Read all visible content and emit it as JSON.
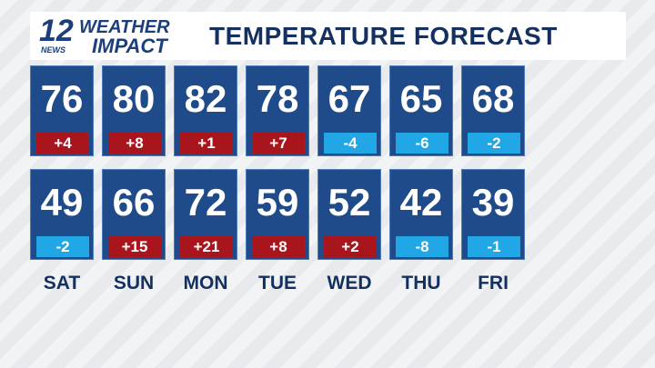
{
  "header": {
    "logo": {
      "number": "12",
      "station": "NEWS",
      "line1": "WEATHER",
      "line2": "IMPACT"
    },
    "title": "TEMPERATURE FORECAST"
  },
  "days": [
    "SAT",
    "SUN",
    "MON",
    "TUE",
    "WED",
    "THU",
    "FRI"
  ],
  "rows": [
    {
      "temps": [
        "76",
        "80",
        "82",
        "78",
        "67",
        "65",
        "68"
      ],
      "changes": [
        "+4",
        "+8",
        "+1",
        "+7",
        "-4",
        "-6",
        "-2"
      ]
    },
    {
      "temps": [
        "49",
        "66",
        "72",
        "59",
        "52",
        "42",
        "39"
      ],
      "changes": [
        "-2",
        "+15",
        "+21",
        "+8",
        "+2",
        "-8",
        "-1"
      ]
    }
  ]
}
